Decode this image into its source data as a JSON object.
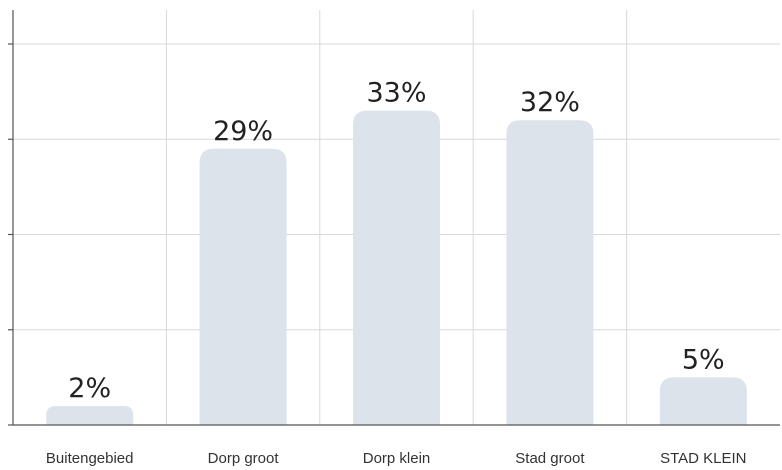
{
  "chart_data": {
    "type": "bar",
    "categories": [
      "Buitengebied",
      "Dorp groot",
      "Dorp klein",
      "Stad groot",
      "STAD KLEIN"
    ],
    "values": [
      2,
      29,
      33,
      32,
      5
    ],
    "labels": [
      "2%",
      "29%",
      "33%",
      "32%",
      "5%"
    ],
    "unit": "%",
    "ylim": [
      0,
      40
    ],
    "yticks": [
      0,
      10,
      20,
      30,
      40
    ],
    "grid": true,
    "bar_color": "#dde3eb",
    "title": "",
    "xlabel": "",
    "ylabel": ""
  }
}
